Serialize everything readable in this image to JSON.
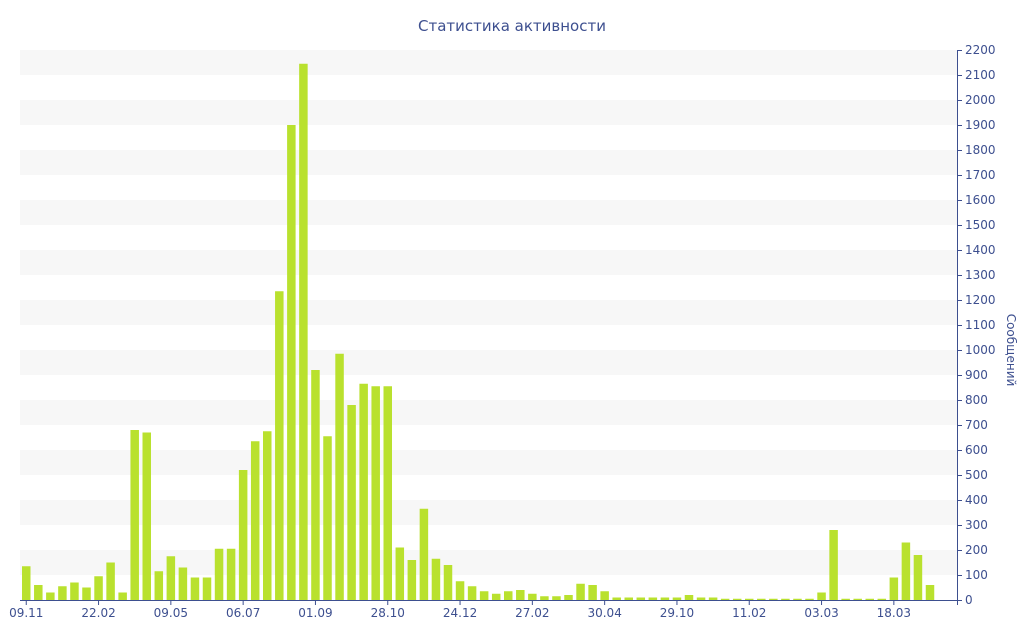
{
  "chart_data": {
    "type": "bar",
    "title": "Статистика активности",
    "xlabel": "",
    "ylabel": "Сообщений",
    "ylim": [
      0,
      2200
    ],
    "y_ticks": [
      0,
      100,
      200,
      300,
      400,
      500,
      600,
      700,
      800,
      900,
      1000,
      1100,
      1200,
      1300,
      1400,
      1500,
      1600,
      1700,
      1800,
      1900,
      2000,
      2100,
      2200
    ],
    "x_tick_labels": [
      {
        "label": "09.11",
        "bar_index": 0
      },
      {
        "label": "22.02",
        "bar_index": 6
      },
      {
        "label": "09.05",
        "bar_index": 12
      },
      {
        "label": "06.07",
        "bar_index": 18
      },
      {
        "label": "01.09",
        "bar_index": 24
      },
      {
        "label": "28.10",
        "bar_index": 30
      },
      {
        "label": "24.12",
        "bar_index": 36
      },
      {
        "label": "27.02",
        "bar_index": 42
      },
      {
        "label": "30.04",
        "bar_index": 48
      },
      {
        "label": "29.10",
        "bar_index": 54
      },
      {
        "label": "11.02",
        "bar_index": 60
      },
      {
        "label": "03.03",
        "bar_index": 66
      },
      {
        "label": "18.03",
        "bar_index": 72
      }
    ],
    "values": [
      135,
      60,
      30,
      55,
      70,
      50,
      95,
      150,
      30,
      680,
      670,
      115,
      175,
      130,
      90,
      90,
      205,
      205,
      520,
      635,
      675,
      1235,
      1900,
      2145,
      920,
      655,
      985,
      780,
      865,
      855,
      855,
      210,
      160,
      365,
      165,
      140,
      75,
      55,
      35,
      25,
      35,
      40,
      25,
      15,
      15,
      20,
      65,
      60,
      35,
      10,
      10,
      10,
      10,
      10,
      10,
      20,
      10,
      10,
      5,
      5,
      5,
      5,
      5,
      5,
      5,
      5,
      30,
      280,
      5,
      5,
      5,
      5,
      90,
      230,
      180,
      60
    ],
    "grid": "horizontal bands",
    "legend": "none",
    "colors": {
      "bar": "#b9e12e",
      "band": "#f7f7f7",
      "text": "#3d4f8f",
      "axis": "#3d4f8f"
    }
  }
}
